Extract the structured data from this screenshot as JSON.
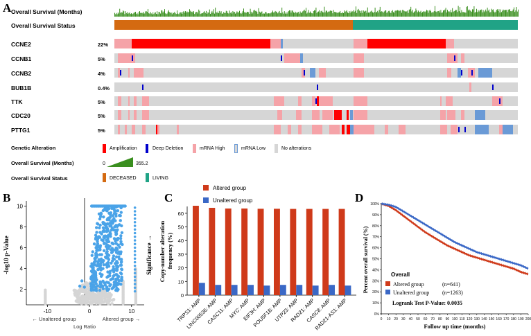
{
  "panels": {
    "a": "A",
    "b": "B",
    "c": "C",
    "d": "D"
  },
  "colors": {
    "amplification": "#ff0000",
    "deep_deletion": "#0000cc",
    "mrna_high": "#f5a3a8",
    "mrna_low": "#6a9ad6",
    "no_alteration": "#d6d6d6",
    "deceased": "#d46a11",
    "living": "#20a386",
    "survival_bar": "#3a8f1f",
    "volcano_blue": "#4aa3e8",
    "altered": "#cf3a1a",
    "unaltered": "#3a68c6"
  },
  "panel_a": {
    "track_survival_months": "Overall Survival (Months)",
    "track_survival_status": "Overall Survival Status",
    "genes": [
      {
        "name": "CCNE2",
        "pct": "22%"
      },
      {
        "name": "CCNB1",
        "pct": "5%"
      },
      {
        "name": "CCNB2",
        "pct": "4%"
      },
      {
        "name": "BUB1B",
        "pct": "0.4%"
      },
      {
        "name": "TTK",
        "pct": "5%"
      },
      {
        "name": "CDC20",
        "pct": "5%"
      },
      {
        "name": "PTTG1",
        "pct": "5%"
      }
    ],
    "legend": {
      "genetic_alteration_title": "Genetic Alteration",
      "items": [
        "Amplification",
        "Deep Deletion",
        "mRNA High",
        "mRNA Low",
        "No alterations"
      ],
      "survival_months_title": "Overall Survival (Months)",
      "survival_min": "0",
      "survival_max": "355.2",
      "survival_status_title": "Overall Survival Status",
      "status_items": [
        "DECEASED",
        "LIVING"
      ]
    }
  },
  "chart_data": [
    {
      "type": "scatter",
      "panel": "B",
      "title": "",
      "xlabel": "Log Ratio",
      "ylabel": "-log10 p-Value",
      "side_label": "Significance →",
      "x_ticks": [
        "-10",
        "0",
        "10"
      ],
      "y_ticks": [
        "2",
        "4",
        "6",
        "8",
        "10"
      ],
      "xlim": [
        -15,
        13
      ],
      "ylim": [
        0.5,
        10.5
      ],
      "group_left": "← Unaltered group",
      "group_right": "Altered group →"
    },
    {
      "type": "bar",
      "panel": "C",
      "title": "",
      "ylabel": "Copy-number alteration frequency (%)",
      "ylim": [
        0,
        65
      ],
      "y_ticks": [
        "0",
        "10",
        "20",
        "30",
        "40",
        "50",
        "60"
      ],
      "categories": [
        "TRPS1: AMP",
        "LINC00536: AMP",
        "CASC11: AMP",
        "MYC: AMP",
        "EIF3H: AMP",
        "POU5F1B: AMP",
        "UTP23: AMP",
        "RAD21: AMP",
        "CASC8: AMP",
        "RAD21-AS1: AMP"
      ],
      "series": [
        {
          "name": "Altered group",
          "values": [
            65.5,
            64,
            63.5,
            63.5,
            63.3,
            63.3,
            63.2,
            63.2,
            63.2,
            63.2
          ]
        },
        {
          "name": "Unaltered group",
          "values": [
            9,
            7.5,
            7.5,
            7.5,
            7,
            7.5,
            7.5,
            7,
            7.5,
            7
          ]
        }
      ],
      "legend_position": "top"
    },
    {
      "type": "line",
      "panel": "D",
      "title": "",
      "xlabel": "Follow up time (months)",
      "ylabel": "Percent overall survival (%)",
      "xlim": [
        0,
        200
      ],
      "ylim": [
        0,
        100
      ],
      "x_ticks": [
        "0",
        "10",
        "20",
        "30",
        "40",
        "50",
        "60",
        "70",
        "80",
        "90",
        "100",
        "110",
        "120",
        "130",
        "140",
        "150",
        "160",
        "170",
        "180",
        "190",
        "200"
      ],
      "y_ticks": [
        "0%",
        "10%",
        "20%",
        "30%",
        "40%",
        "50%",
        "60%",
        "70%",
        "80%",
        "90%",
        "100%"
      ],
      "x": [
        0,
        10,
        20,
        30,
        40,
        50,
        60,
        70,
        80,
        90,
        100,
        110,
        120,
        130,
        140,
        150,
        160,
        170,
        180,
        190,
        200
      ],
      "series": [
        {
          "name": "Altered group",
          "n": "(n=641)",
          "values": [
            100,
            98,
            94,
            89,
            84,
            79,
            74,
            70,
            66,
            62,
            59,
            56,
            53,
            51,
            49,
            47,
            45,
            43,
            41,
            38,
            36
          ]
        },
        {
          "name": "Unaltered group",
          "n": "(n=1263)",
          "values": [
            100,
            99,
            97,
            93,
            89,
            85,
            81,
            77,
            73,
            69,
            65,
            62,
            59,
            56,
            54,
            52,
            50,
            48,
            46,
            44,
            41
          ]
        }
      ],
      "legend_title": "Overall",
      "annotation": "Logrank Test P-Value: 0.0035",
      "legend_position": "bottom-left"
    }
  ]
}
